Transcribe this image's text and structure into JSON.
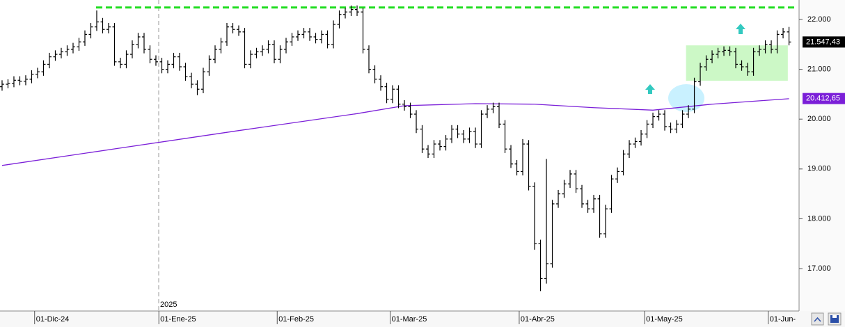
{
  "chart_data": {
    "type": "ohlc",
    "open": [
      20650,
      20700,
      20720,
      20780,
      20760,
      20800,
      20900,
      20950,
      21100,
      21250,
      21300,
      21350,
      21400,
      21450,
      21550,
      21700,
      21850,
      21950,
      21800,
      21850,
      21150,
      21100,
      21300,
      21500,
      21650,
      21400,
      21200,
      21150,
      21000,
      21100,
      21250,
      21050,
      20850,
      20700,
      20600,
      20950,
      21200,
      21400,
      21550,
      21850,
      21800,
      21750,
      21100,
      21300,
      21350,
      21400,
      21500,
      21200,
      21400,
      21550,
      21650,
      21700,
      21750,
      21650,
      21600,
      21700,
      21500,
      21900,
      22100,
      22150,
      22200,
      22150,
      21400,
      21000,
      20800,
      20650,
      20400,
      20600,
      20300,
      20250,
      20100,
      19800,
      19400,
      19300,
      19500,
      19450,
      19600,
      19800,
      19700,
      19600,
      19750,
      19500,
      20100,
      20200,
      20250,
      19900,
      19400,
      19100,
      18950,
      19500,
      18650,
      17500,
      16800,
      17100,
      18300,
      18500,
      18700,
      18900,
      18600,
      18300,
      18200,
      18400,
      17700,
      18200,
      18800,
      18950,
      19300,
      19500,
      19550,
      19700,
      19900,
      20050,
      20100,
      19850,
      19800,
      19900,
      20100,
      20200,
      20750,
      21050,
      21200,
      21300,
      21350,
      21380,
      21350,
      21100,
      21050,
      20950,
      21350,
      21400,
      21500,
      21400,
      21700,
      21750
    ],
    "high": [
      20780,
      20800,
      20860,
      20860,
      20880,
      20980,
      21030,
      21180,
      21330,
      21380,
      21430,
      21480,
      21530,
      21630,
      21780,
      21930,
      22180,
      22030,
      21930,
      21930,
      21230,
      21380,
      21580,
      21730,
      21730,
      21480,
      21280,
      21230,
      21180,
      21330,
      21330,
      21130,
      20930,
      20780,
      21030,
      21280,
      21480,
      21630,
      21930,
      21930,
      21880,
      21830,
      21380,
      21430,
      21480,
      21580,
      21580,
      21480,
      21630,
      21730,
      21780,
      21830,
      21830,
      21730,
      21780,
      21780,
      21980,
      22180,
      22230,
      22280,
      22280,
      22230,
      21480,
      21080,
      20880,
      20730,
      20680,
      20680,
      20380,
      20330,
      20180,
      19880,
      19480,
      19580,
      19580,
      19680,
      19880,
      19880,
      19780,
      19830,
      19830,
      20180,
      20280,
      20330,
      20330,
      19980,
      19480,
      19180,
      19600,
      19580,
      18730,
      17580,
      19200,
      18380,
      18580,
      18780,
      18980,
      18980,
      18680,
      18380,
      18480,
      18480,
      18280,
      18880,
      19030,
      19380,
      19580,
      19630,
      19780,
      19980,
      20130,
      20180,
      20180,
      19930,
      19980,
      20180,
      20280,
      20830,
      21130,
      21280,
      21380,
      21430,
      21460,
      21460,
      21430,
      21180,
      21130,
      21430,
      21480,
      21580,
      21580,
      21780,
      21830,
      21850
    ],
    "low": [
      20570,
      20620,
      20640,
      20680,
      20680,
      20720,
      20820,
      20870,
      21020,
      21170,
      21220,
      21270,
      21320,
      21370,
      21470,
      21620,
      21770,
      21720,
      21720,
      21070,
      21020,
      21020,
      21220,
      21420,
      21320,
      21120,
      21070,
      20920,
      20920,
      21020,
      20970,
      20770,
      20620,
      20480,
      20520,
      20870,
      21120,
      21320,
      21470,
      21720,
      21670,
      21020,
      21020,
      21220,
      21270,
      21320,
      21120,
      21120,
      21320,
      21470,
      21570,
      21620,
      21570,
      21520,
      21520,
      21420,
      21420,
      21820,
      22020,
      22070,
      22070,
      21320,
      20920,
      20720,
      20570,
      20320,
      20320,
      20220,
      20170,
      20020,
      19720,
      19320,
      19220,
      19220,
      19370,
      19370,
      19520,
      19620,
      19520,
      19520,
      19420,
      19420,
      20020,
      20120,
      19820,
      19320,
      19020,
      18870,
      18870,
      18570,
      17380,
      16550,
      16700,
      17020,
      18220,
      18420,
      18620,
      18520,
      18220,
      18120,
      18120,
      17620,
      17620,
      18120,
      18720,
      18870,
      19220,
      19420,
      19470,
      19620,
      19820,
      19970,
      19770,
      19720,
      19720,
      19820,
      20020,
      20120,
      20670,
      20970,
      21120,
      21220,
      21270,
      21270,
      21020,
      20970,
      20870,
      20870,
      21270,
      21320,
      21320,
      21320,
      21620,
      21480
    ],
    "close": [
      20700,
      20720,
      20780,
      20760,
      20800,
      20900,
      20950,
      21100,
      21250,
      21300,
      21350,
      21400,
      21450,
      21550,
      21700,
      21850,
      21950,
      21800,
      21850,
      21150,
      21100,
      21300,
      21500,
      21650,
      21400,
      21200,
      21150,
      21000,
      21100,
      21250,
      21050,
      20850,
      20700,
      20600,
      20950,
      21200,
      21400,
      21550,
      21850,
      21800,
      21750,
      21100,
      21300,
      21350,
      21400,
      21500,
      21200,
      21400,
      21550,
      21650,
      21700,
      21750,
      21650,
      21600,
      21700,
      21500,
      21900,
      22100,
      22150,
      22200,
      22150,
      21400,
      21000,
      20800,
      20650,
      20400,
      20600,
      20300,
      20250,
      20100,
      19800,
      19400,
      19300,
      19500,
      19450,
      19600,
      19800,
      19700,
      19600,
      19750,
      19500,
      20100,
      20200,
      20250,
      19900,
      19400,
      19100,
      18950,
      19500,
      18650,
      17500,
      16800,
      17100,
      18300,
      18500,
      18700,
      18900,
      18600,
      18300,
      18200,
      18400,
      17700,
      18200,
      18800,
      18950,
      19300,
      19500,
      19550,
      19700,
      19900,
      20050,
      20100,
      19850,
      19800,
      19900,
      20100,
      20200,
      20750,
      21050,
      21200,
      21300,
      21350,
      21380,
      21350,
      21100,
      21050,
      20950,
      21350,
      21400,
      21500,
      21400,
      21700,
      21750,
      21547
    ],
    "color": "#000000",
    "moving_average": {
      "color": "#7b1fd8",
      "x": [
        0,
        20,
        40,
        60,
        68,
        80,
        90,
        100,
        110,
        120,
        133
      ],
      "values": [
        19070,
        19420,
        19770,
        20110,
        20270,
        20310,
        20300,
        20230,
        20180,
        20300,
        20410
      ]
    },
    "resistance": {
      "value": 22240,
      "color": "#22dd22"
    },
    "range_box": {
      "x": [
        115.6,
        132.8
      ],
      "y": [
        20770,
        21480
      ],
      "color": "#c6f7c0"
    },
    "last_price": {
      "value": 21547.43,
      "label": "21.547,43"
    },
    "ma_last": {
      "value": 20412.65,
      "label": "20.412,65"
    },
    "year_label": "2025",
    "xlim": [
      -0.35,
      134.7
    ],
    "ylim": [
      16150,
      22390
    ],
    "yticks": [
      {
        "value": 17000,
        "label": "17.000"
      },
      {
        "value": 18000,
        "label": "18.000"
      },
      {
        "value": 19000,
        "label": "19.000"
      },
      {
        "value": 20000,
        "label": "20.000"
      },
      {
        "value": 21000,
        "label": "21.000"
      },
      {
        "value": 22000,
        "label": "22.000"
      }
    ],
    "xticks": [
      {
        "value": 5.5,
        "label": "01-Dic-24"
      },
      {
        "value": 26.5,
        "label": "01-Ene-25"
      },
      {
        "value": 46.5,
        "label": "01-Feb-25"
      },
      {
        "value": 65.6,
        "label": "01-Mar-25"
      },
      {
        "value": 87.4,
        "label": "01-Abr-25"
      },
      {
        "value": 108.6,
        "label": "01-May-25"
      },
      {
        "value": 129.5,
        "label": "01-Jun-"
      }
    ]
  }
}
